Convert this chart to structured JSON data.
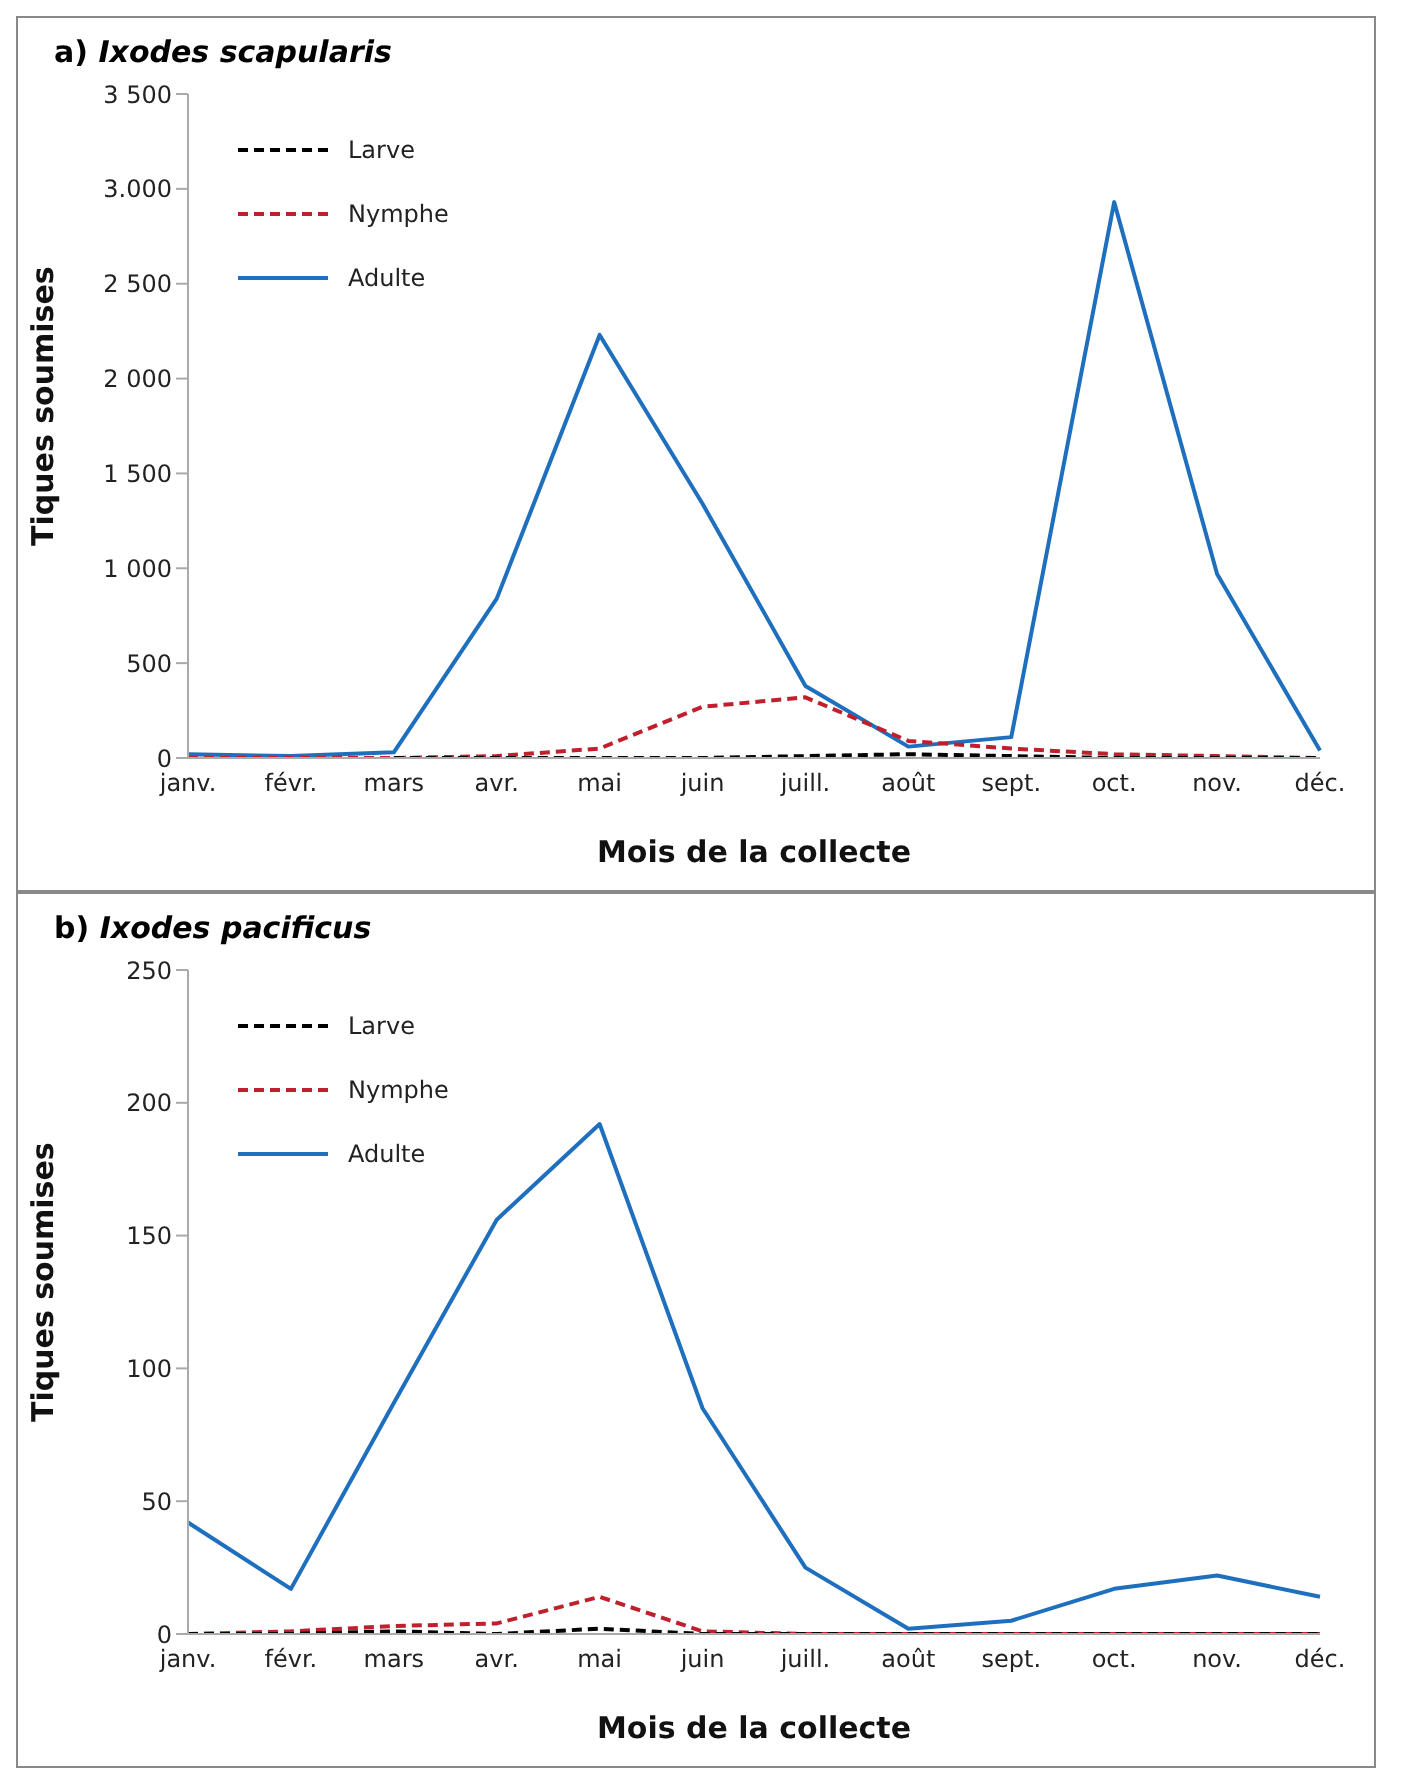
{
  "chart_data": [
    {
      "type": "line",
      "title": "a) Ixodes scapularis",
      "xlabel": "Mois de la collecte",
      "ylabel": "Tiques soumises",
      "categories": [
        "janv.",
        "févr.",
        "mars",
        "avr.",
        "mai",
        "juin",
        "juill.",
        "août",
        "sept.",
        "oct.",
        "nov.",
        "déc."
      ],
      "series": [
        {
          "name": "Larve",
          "color": "#000000",
          "line_style": "dashed",
          "values": [
            null,
            null,
            0,
            0,
            0,
            0,
            10,
            20,
            10,
            0,
            0,
            0
          ]
        },
        {
          "name": "Nymphe",
          "color": "#c0202e",
          "line_style": "dashed",
          "values": [
            0,
            0,
            0,
            10,
            50,
            270,
            320,
            90,
            50,
            20,
            10,
            0
          ]
        },
        {
          "name": "Adulte",
          "color": "#1f6fbf",
          "line_style": "solid",
          "values": [
            20,
            10,
            30,
            840,
            2230,
            1340,
            380,
            60,
            110,
            2930,
            970,
            40
          ]
        }
      ],
      "ylim": [
        0,
        3500
      ],
      "yticks": [
        0,
        500,
        {
          "value": 1000,
          "label": "1 000"
        },
        {
          "value": 1500,
          "label": "1 500"
        },
        {
          "value": 2000,
          "label": "2 000"
        },
        {
          "value": 2500,
          "label": "2 500"
        },
        {
          "value": 3000,
          "label": "3.000"
        },
        {
          "value": 3500,
          "label": "3 500"
        }
      ],
      "grid": false,
      "legend": "top left",
      "marker": "none"
    },
    {
      "type": "line",
      "title": "b) Ixodes pacificus",
      "xlabel": "Mois de la collecte",
      "ylabel": "Tiques soumises",
      "categories": [
        "janv.",
        "févr.",
        "mars",
        "avr.",
        "mai",
        "juin",
        "juill.",
        "août",
        "sept.",
        "oct.",
        "nov.",
        "déc."
      ],
      "series": [
        {
          "name": "Larve",
          "color": "#000000",
          "line_style": "dashed",
          "values": [
            0,
            0,
            1,
            0,
            2,
            0,
            0,
            0,
            0,
            0,
            0,
            0
          ]
        },
        {
          "name": "Nymphe",
          "color": "#c0202e",
          "line_style": "dashed",
          "values": [
            0,
            1,
            3,
            4,
            14,
            1,
            0,
            0,
            0,
            0,
            0,
            0
          ]
        },
        {
          "name": "Adulte",
          "color": "#1f6fbf",
          "line_style": "solid",
          "values": [
            42,
            17,
            87,
            156,
            192,
            85,
            25,
            2,
            5,
            17,
            22,
            14
          ]
        }
      ],
      "ylim": [
        0,
        250
      ],
      "yticks": [
        0,
        50,
        100,
        150,
        200,
        250
      ],
      "grid": false,
      "legend": "top left",
      "marker": "none"
    }
  ]
}
